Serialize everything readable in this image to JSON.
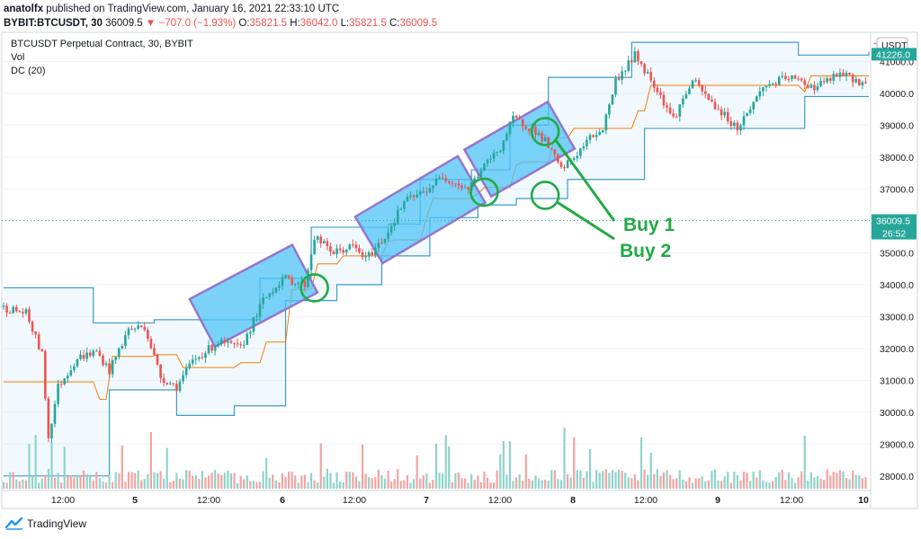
{
  "header": {
    "author": "anatolfx",
    "published": "published on TradingView.com, January 16, 2021 22:33:10 UTC",
    "symbol": "BYBIT:BTCUSDT, 30",
    "last": "36009.5",
    "change": "−707.0 (−1.93%)",
    "o_label": "O:",
    "o": "35821.5",
    "h_label": "H:",
    "h": "36042.0",
    "l_label": "L:",
    "l": "35821.5",
    "c_label": "C:",
    "c": "36009.5"
  },
  "legend": {
    "title": "BTCUSDT Perpetual Contract, 30, BYBIT",
    "vol": "Vol",
    "dc": "DC (20)"
  },
  "price_axis": {
    "currency": "USDT",
    "top_badge": "41226.0",
    "last_badge": "36009.5",
    "countdown": "26:52"
  },
  "annotations": {
    "buy1": "Buy 1",
    "buy2": "Buy 2"
  },
  "footer": {
    "brand": "TradingView"
  },
  "colors": {
    "up": "#26a69a",
    "down": "#ef5350",
    "channel": "#2196f3",
    "basis": "#f57c00",
    "highlight": "#4fc3f7",
    "annotation": "#22aa44"
  },
  "chart_data": {
    "type": "candlestick",
    "title": "BTCUSDT Perpetual Contract, 30, BYBIT",
    "ylim": [
      27600,
      41800
    ],
    "y_ticks": [
      28000,
      29000,
      30000,
      31000,
      32000,
      33000,
      34000,
      35000,
      36000,
      37000,
      38000,
      39000,
      40000,
      41000
    ],
    "x_ticks": [
      "12:00",
      "5",
      "12:00",
      "6",
      "12:00",
      "7",
      "12:00",
      "8",
      "12:00",
      "9",
      "12:00",
      "10"
    ],
    "price_path": [
      [
        0,
        33300
      ],
      [
        8,
        33100
      ],
      [
        13,
        31800
      ],
      [
        15,
        29200
      ],
      [
        18,
        30800
      ],
      [
        24,
        31700
      ],
      [
        30,
        31900
      ],
      [
        34,
        31300
      ],
      [
        40,
        32600
      ],
      [
        45,
        32700
      ],
      [
        50,
        31100
      ],
      [
        55,
        30800
      ],
      [
        60,
        31600
      ],
      [
        68,
        32200
      ],
      [
        75,
        32000
      ],
      [
        82,
        33500
      ],
      [
        88,
        34200
      ],
      [
        95,
        34000
      ],
      [
        98,
        35500
      ],
      [
        104,
        35000
      ],
      [
        110,
        35200
      ],
      [
        114,
        34800
      ],
      [
        120,
        35500
      ],
      [
        126,
        36600
      ],
      [
        132,
        36900
      ],
      [
        138,
        37400
      ],
      [
        142,
        37200
      ],
      [
        146,
        37000
      ],
      [
        150,
        37600
      ],
      [
        156,
        38300
      ],
      [
        160,
        39200
      ],
      [
        166,
        38900
      ],
      [
        170,
        38500
      ],
      [
        175,
        37600
      ],
      [
        180,
        38100
      ],
      [
        184,
        38600
      ],
      [
        188,
        38900
      ],
      [
        192,
        40400
      ],
      [
        198,
        41200
      ],
      [
        204,
        40300
      ],
      [
        210,
        39200
      ],
      [
        216,
        40400
      ],
      [
        222,
        39700
      ],
      [
        230,
        38900
      ],
      [
        238,
        40200
      ],
      [
        246,
        40500
      ],
      [
        254,
        40200
      ],
      [
        262,
        40600
      ],
      [
        270,
        40300
      ]
    ],
    "donchian": {
      "period": 20,
      "upper": [
        [
          0,
          33900
        ],
        [
          28,
          32800
        ],
        [
          47,
          32900
        ],
        [
          62,
          32900
        ],
        [
          80,
          34200
        ],
        [
          96,
          35800
        ],
        [
          120,
          35900
        ],
        [
          130,
          37300
        ],
        [
          146,
          37600
        ],
        [
          158,
          39000
        ],
        [
          170,
          40500
        ],
        [
          196,
          41600
        ],
        [
          228,
          41600
        ],
        [
          248,
          41200
        ],
        [
          270,
          41300
        ]
      ],
      "lower": [
        [
          0,
          28000
        ],
        [
          33,
          30700
        ],
        [
          54,
          29900
        ],
        [
          72,
          30200
        ],
        [
          88,
          33500
        ],
        [
          104,
          34000
        ],
        [
          118,
          34900
        ],
        [
          133,
          36100
        ],
        [
          148,
          36500
        ],
        [
          160,
          36700
        ],
        [
          176,
          37300
        ],
        [
          200,
          38900
        ],
        [
          226,
          38900
        ],
        [
          250,
          39900
        ],
        [
          270,
          39900
        ]
      ]
    },
    "highlight_boxes": [
      {
        "from": [
          62,
          32800
        ],
        "to": [
          94,
          34500
        ]
      },
      {
        "from": [
          114,
          35400
        ],
        "to": [
          146,
          37300
        ]
      },
      {
        "from": [
          148,
          37500
        ],
        "to": [
          174,
          39000
        ]
      }
    ],
    "circles": [
      {
        "at": [
          97,
          33900
        ],
        "label": ""
      },
      {
        "at": [
          150,
          36900
        ],
        "label": ""
      },
      {
        "at": [
          169,
          38800
        ],
        "label": "Buy 1"
      },
      {
        "at": [
          169,
          36800
        ],
        "label": "Buy 2"
      }
    ]
  }
}
